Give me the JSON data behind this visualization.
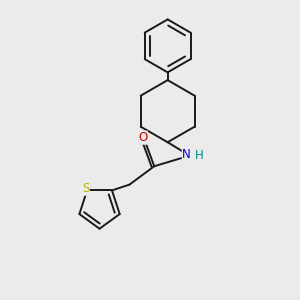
{
  "background_color": "#ebebeb",
  "bond_color": "#1a1a1a",
  "line_width": 1.4,
  "atoms": {
    "S": {
      "color": "#b8b800",
      "fontsize": 8.5
    },
    "O": {
      "color": "#cc0000",
      "fontsize": 8.5
    },
    "N": {
      "color": "#0000cc",
      "fontsize": 8.5
    },
    "H": {
      "color": "#008888",
      "fontsize": 8.5
    }
  },
  "figsize": [
    3.0,
    3.0
  ],
  "dpi": 100,
  "xlim": [
    0.0,
    7.0
  ],
  "ylim": [
    0.0,
    8.5
  ]
}
